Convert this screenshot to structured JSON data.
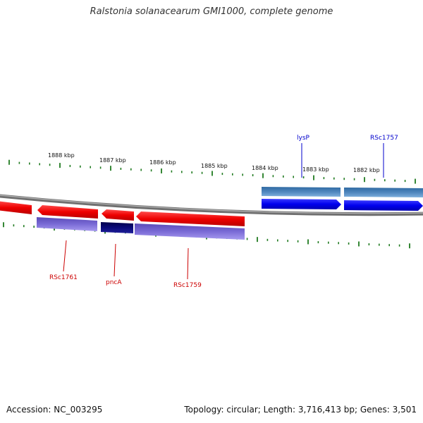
{
  "title": "Ralstonia solanacearum GMI1000, complete genome",
  "footer": {
    "accession": "Accession: NC_003295",
    "summary": "Topology: circular; Length: 3,716,413 bp; Genes: 3,501"
  },
  "scale_labels": [
    "1888 kbp",
    "1887 kbp",
    "1886 kbp",
    "1885 kbp",
    "1884 kbp",
    "1883 kbp",
    "1882 kbp"
  ],
  "genes_forward_strand": [
    {
      "name": "lysP",
      "label_color": "#0000cc"
    },
    {
      "name": "RSc1757",
      "label_color": "#0000cc"
    }
  ],
  "genes_reverse_strand": [
    {
      "name": "RSc1761",
      "label_color": "#cc0000"
    },
    {
      "name": "pncA",
      "label_color": "#cc0000"
    },
    {
      "name": "RSc1759",
      "label_color": "#cc0000"
    }
  ],
  "colors": {
    "backbone": "#8a8a8a",
    "tick": "#1f7a1f",
    "forward_cds": "#0000ee",
    "forward_gene_band": "#4a7fb5",
    "reverse_cds": "#ee0000",
    "reverse_gene_band": "#7a6bd6",
    "reverse_gene_band_dark": "#0a0a7a"
  }
}
